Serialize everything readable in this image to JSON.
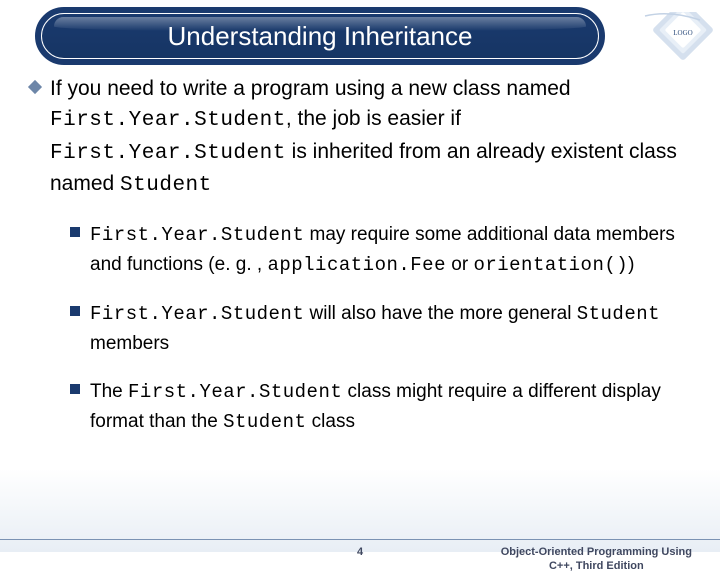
{
  "title": "Understanding Inheritance",
  "main_paragraph": {
    "parts": [
      {
        "t": "If you need to write a program using a new class named ",
        "code": false
      },
      {
        "t": "First.Year.Student",
        "code": true
      },
      {
        "t": ", the job is easier if ",
        "code": false
      },
      {
        "t": "First.Year.Student",
        "code": true
      },
      {
        "t": " is inherited from an already existent class named ",
        "code": false
      },
      {
        "t": "Student",
        "code": true
      }
    ]
  },
  "sub_bullets": [
    {
      "parts": [
        {
          "t": "First.Year.Student",
          "code": true
        },
        {
          "t": " may require some additional data members and functions (e. g. , ",
          "code": false
        },
        {
          "t": "application.Fee",
          "code": true
        },
        {
          "t": " or ",
          "code": false
        },
        {
          "t": "orientation()",
          "code": true
        },
        {
          "t": ")",
          "code": false
        }
      ]
    },
    {
      "parts": [
        {
          "t": "First.Year.Student",
          "code": true
        },
        {
          "t": " will also have the more general ",
          "code": false
        },
        {
          "t": "Student",
          "code": true
        },
        {
          "t": " members",
          "code": false
        }
      ]
    },
    {
      "parts": [
        {
          "t": "The ",
          "code": false
        },
        {
          "t": "First.Year.Student",
          "code": true
        },
        {
          "t": " class might require a different display format than the ",
          "code": false
        },
        {
          "t": "Student",
          "code": true
        },
        {
          "t": " class",
          "code": false
        }
      ]
    }
  ],
  "page_number": "4",
  "book_line1": "Object-Oriented Programming Using",
  "book_line2": "C++, Third Edition",
  "colors": {
    "navbar_bg": "#1a3a6e",
    "diamond": "#6d86a8",
    "square": "#1a3a6e",
    "footer_text": "#404860",
    "footer_rule": "#7a92b3"
  }
}
